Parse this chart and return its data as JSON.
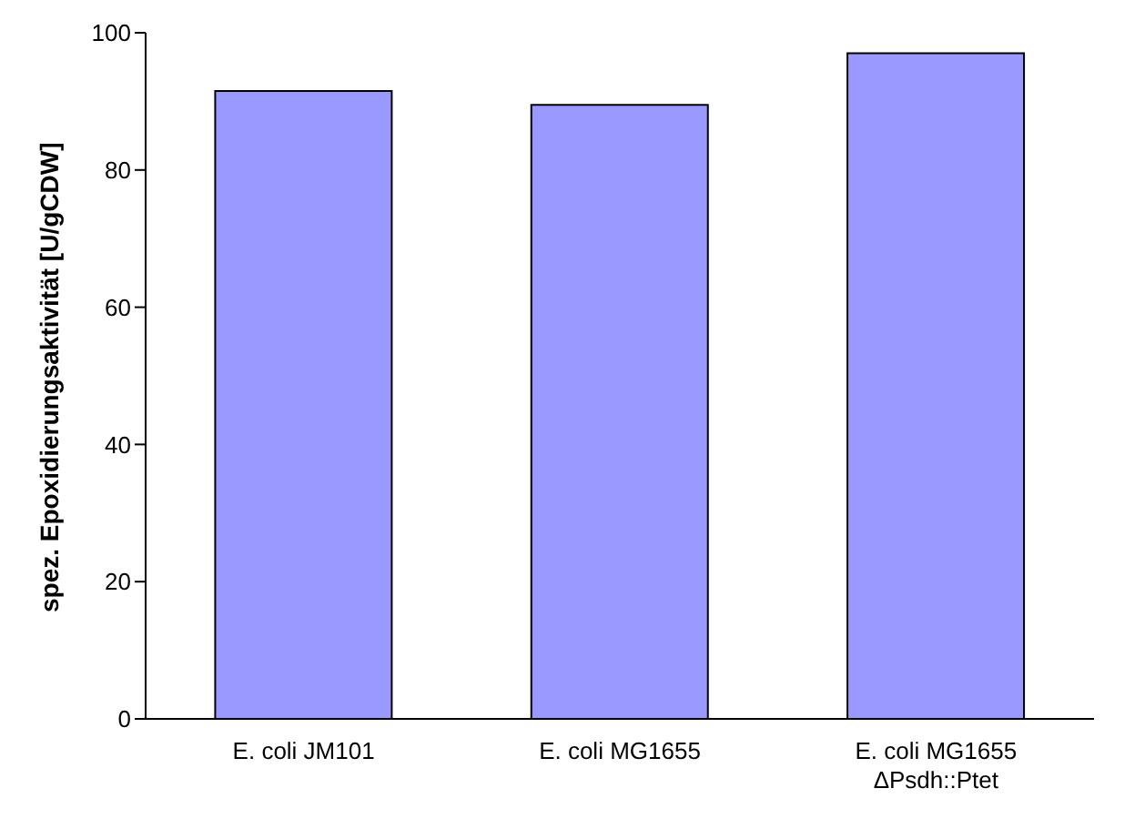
{
  "chart_data": {
    "type": "bar",
    "ylabel": "spez. Epoxidierungsaktivität [U/gCDW]",
    "categories": [
      "E. coli JM101",
      "E. coli MG1655",
      "E. coli MG1655\nΔPsdh::Ptet"
    ],
    "values": [
      91.5,
      89.5,
      97
    ],
    "color": "#9999ff",
    "ylim": [
      0,
      100
    ],
    "yticks": [
      0,
      20,
      40,
      60,
      80,
      100
    ],
    "grid": false,
    "legend": false
  }
}
